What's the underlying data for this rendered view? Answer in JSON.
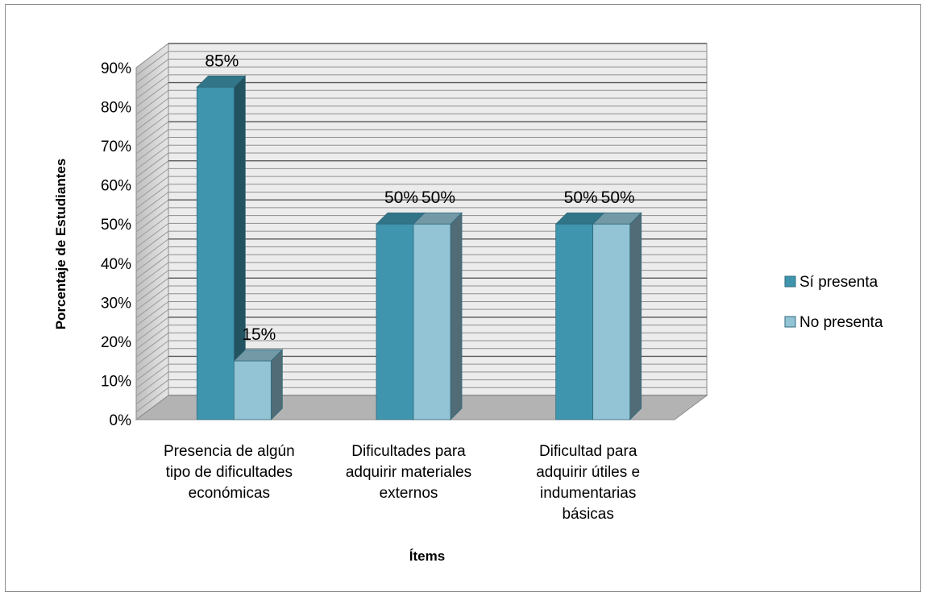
{
  "chart_data": {
    "type": "bar",
    "title": "",
    "xlabel": "Ítems",
    "ylabel": "Porcentaje de Estudiantes",
    "ylim": [
      0,
      90
    ],
    "yticks": [
      "0%",
      "10%",
      "20%",
      "30%",
      "40%",
      "50%",
      "60%",
      "70%",
      "80%",
      "90%"
    ],
    "categories": [
      [
        "Presencia de algún",
        "tipo de dificultades",
        "económicas"
      ],
      [
        "Dificultades para",
        "adquirir materiales",
        "externos"
      ],
      [
        "Dificultad para",
        "adquirir útiles e",
        "indumentarias",
        "básicas"
      ]
    ],
    "series": [
      {
        "name": "Sí presenta",
        "values": [
          85,
          50,
          50
        ],
        "labels": [
          "85%",
          "50%",
          "50%"
        ],
        "color": "#4095AE"
      },
      {
        "name": "No presenta",
        "values": [
          15,
          50,
          50
        ],
        "labels": [
          "15%",
          "50%",
          "50%"
        ],
        "color": "#93C4D6"
      }
    ],
    "legend_position": "right",
    "grid": true,
    "three_d": true
  }
}
